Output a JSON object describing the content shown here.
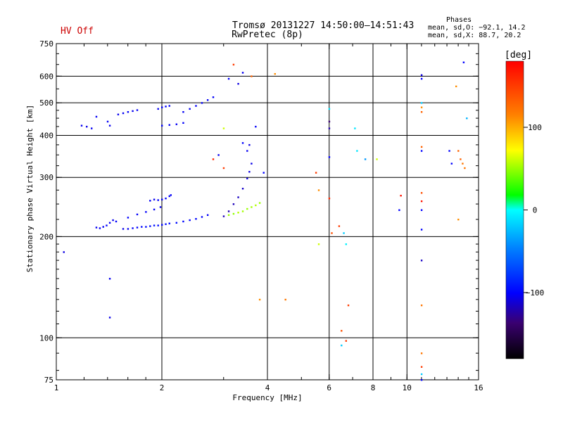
{
  "title_line1": "Tromsø 20131227 14:50:00–14:51:43",
  "title_line2": "RwPretec (8p)",
  "status_label": "HV Off",
  "phases": {
    "title": "Phases",
    "o_line": "mean, sd,O: −92.1, 14.2",
    "x_line": "mean, sd,X:  88.7, 20.2"
  },
  "colorbar": {
    "unit_label": "[deg]",
    "ticks": [
      "100",
      "0",
      "−100"
    ],
    "tick_values": [
      100,
      0,
      -100
    ],
    "range": [
      -180,
      180
    ]
  },
  "chart_data": {
    "type": "scatter",
    "title": "Tromsø 20131227 14:50:00–14:51:43",
    "subtitle": "RwPretec (8p)",
    "xlabel": "Frequency [MHz]",
    "ylabel": "Stationary phase Virtual Height [km]",
    "x_scale": "log",
    "y_scale": "log",
    "xlim": [
      1,
      16
    ],
    "ylim": [
      75,
      750
    ],
    "x_ticks": [
      "1",
      "2",
      "4",
      "6",
      "8",
      "10",
      "16"
    ],
    "x_tick_values": [
      1,
      2,
      4,
      6,
      8,
      10,
      16
    ],
    "x_grid_values": [
      2,
      4,
      6,
      8,
      10
    ],
    "y_ticks": [
      "75",
      "100",
      "200",
      "300",
      "400",
      "500",
      "600",
      "750"
    ],
    "y_tick_values": [
      75,
      100,
      200,
      300,
      400,
      500,
      600,
      750
    ],
    "y_grid_values": [
      100,
      200,
      300,
      400,
      500,
      600
    ],
    "color_by": "phase_deg",
    "series": [
      {
        "points": [
          [
            1.3,
            213,
            -105
          ],
          [
            1.33,
            212,
            -102
          ],
          [
            1.36,
            214,
            -104
          ],
          [
            1.39,
            216,
            -100
          ],
          [
            1.42,
            220,
            -103
          ],
          [
            1.45,
            224,
            -106
          ],
          [
            1.48,
            222,
            -101
          ],
          [
            1.55,
            211,
            -108
          ],
          [
            1.6,
            211,
            -104
          ],
          [
            1.65,
            212,
            -102
          ],
          [
            1.7,
            213,
            -100
          ],
          [
            1.75,
            214,
            -98
          ],
          [
            1.8,
            214,
            -96
          ],
          [
            1.85,
            215,
            -95
          ],
          [
            1.9,
            216,
            -94
          ],
          [
            1.95,
            216,
            -96
          ],
          [
            2.0,
            217,
            -98
          ],
          [
            2.05,
            218,
            -97
          ],
          [
            2.1,
            219,
            -95
          ],
          [
            2.2,
            220,
            -96
          ],
          [
            2.3,
            222,
            -98
          ],
          [
            2.4,
            224,
            -100
          ],
          [
            2.5,
            226,
            -99
          ],
          [
            2.6,
            229,
            -101
          ],
          [
            2.7,
            232,
            -103
          ],
          [
            1.6,
            228,
            -100
          ],
          [
            1.7,
            233,
            -102
          ],
          [
            1.8,
            237,
            -101
          ],
          [
            1.9,
            241,
            -103
          ],
          [
            1.98,
            245,
            -104
          ],
          [
            1.85,
            256,
            -103
          ],
          [
            1.9,
            258,
            -105
          ],
          [
            1.95,
            257,
            -102
          ],
          [
            2.0,
            258,
            -104
          ],
          [
            2.05,
            260,
            -101
          ],
          [
            2.1,
            264,
            -100
          ],
          [
            2.12,
            266,
            -103
          ],
          [
            1.5,
            462,
            -106
          ],
          [
            1.55,
            466,
            -104
          ],
          [
            1.6,
            470,
            -102
          ],
          [
            1.65,
            473,
            -105
          ],
          [
            1.7,
            476,
            -103
          ],
          [
            1.95,
            480,
            -104
          ],
          [
            2.0,
            485,
            -102
          ],
          [
            2.05,
            488,
            -101
          ],
          [
            2.1,
            490,
            -103
          ],
          [
            2.0,
            428,
            -100
          ],
          [
            2.1,
            430,
            -102
          ],
          [
            2.2,
            432,
            -104
          ],
          [
            2.3,
            436,
            -101
          ],
          [
            2.3,
            470,
            -103
          ],
          [
            2.4,
            480,
            -104
          ],
          [
            2.5,
            490,
            -102
          ],
          [
            2.6,
            500,
            -101
          ],
          [
            2.7,
            510,
            -103
          ],
          [
            2.8,
            520,
            -102
          ],
          [
            1.18,
            428,
            -105
          ],
          [
            1.22,
            425,
            -108
          ],
          [
            1.26,
            420,
            -104
          ],
          [
            1.3,
            455,
            -103
          ],
          [
            1.4,
            440,
            -102
          ],
          [
            1.42,
            428,
            -106
          ],
          [
            3.0,
            230,
            -125
          ],
          [
            3.1,
            238,
            -128
          ],
          [
            3.2,
            250,
            -124
          ],
          [
            3.3,
            262,
            -121
          ],
          [
            3.4,
            278,
            -118
          ],
          [
            3.5,
            298,
            -112
          ],
          [
            3.55,
            312,
            -110
          ],
          [
            3.6,
            330,
            -108
          ],
          [
            3.1,
            232,
            50
          ],
          [
            3.2,
            234,
            48
          ],
          [
            3.3,
            236,
            55
          ],
          [
            3.4,
            238,
            52
          ],
          [
            3.5,
            242,
            50
          ],
          [
            3.6,
            245,
            52
          ],
          [
            3.7,
            248,
            55
          ],
          [
            3.8,
            252,
            50
          ],
          [
            1.05,
            180,
            -110
          ],
          [
            1.42,
            150,
            -105
          ],
          [
            1.42,
            115,
            -108
          ],
          [
            3.1,
            590,
            -102
          ],
          [
            3.3,
            570,
            -110
          ],
          [
            3.4,
            615,
            -105
          ],
          [
            3.2,
            650,
            150
          ],
          [
            3.6,
            600,
            130
          ],
          [
            4.2,
            610,
            110
          ],
          [
            3.4,
            380,
            -100
          ],
          [
            3.5,
            360,
            -105
          ],
          [
            3.55,
            375,
            -110
          ],
          [
            3.7,
            425,
            -102
          ],
          [
            3.9,
            310,
            -100
          ],
          [
            3.0,
            420,
            60
          ],
          [
            2.8,
            340,
            160
          ],
          [
            2.9,
            350,
            -105
          ],
          [
            3.0,
            320,
            150
          ],
          [
            3.8,
            130,
            110
          ],
          [
            4.5,
            130,
            120
          ],
          [
            5.5,
            310,
            150
          ],
          [
            5.6,
            275,
            110
          ],
          [
            5.6,
            190,
            60
          ],
          [
            6.0,
            480,
            -10
          ],
          [
            6.0,
            440,
            -150
          ],
          [
            6.0,
            420,
            -130
          ],
          [
            6.0,
            345,
            -100
          ],
          [
            6.0,
            260,
            160
          ],
          [
            6.1,
            205,
            140
          ],
          [
            6.4,
            215,
            150
          ],
          [
            6.5,
            105,
            140
          ],
          [
            6.6,
            205,
            -20
          ],
          [
            6.7,
            190,
            -5
          ],
          [
            6.7,
            98,
            150
          ],
          [
            6.5,
            95,
            -20
          ],
          [
            6.8,
            125,
            150
          ],
          [
            7.1,
            420,
            -10
          ],
          [
            7.2,
            360,
            -10
          ],
          [
            7.6,
            340,
            -40
          ],
          [
            8.2,
            340,
            60
          ],
          [
            9.5,
            240,
            -100
          ],
          [
            9.6,
            265,
            170
          ],
          [
            11.0,
            590,
            -100
          ],
          [
            11.0,
            605,
            -110
          ],
          [
            11.0,
            500,
            -20
          ],
          [
            11.0,
            485,
            110
          ],
          [
            11.0,
            470,
            130
          ],
          [
            11.0,
            370,
            130
          ],
          [
            11.0,
            360,
            -100
          ],
          [
            11.0,
            270,
            140
          ],
          [
            11.0,
            255,
            170
          ],
          [
            11.0,
            240,
            -100
          ],
          [
            11.0,
            210,
            -100
          ],
          [
            11.0,
            170,
            -120
          ],
          [
            11.0,
            125,
            120
          ],
          [
            11.0,
            82,
            150
          ],
          [
            11.0,
            78,
            -20
          ],
          [
            11.0,
            90,
            120
          ],
          [
            11.0,
            75,
            -100
          ],
          [
            13.8,
            560,
            110
          ],
          [
            14.0,
            360,
            130
          ],
          [
            14.2,
            340,
            130
          ],
          [
            14.4,
            330,
            120
          ],
          [
            14.6,
            320,
            120
          ],
          [
            13.2,
            360,
            -100
          ],
          [
            13.4,
            330,
            -100
          ],
          [
            14.8,
            450,
            -30
          ],
          [
            14.0,
            225,
            110
          ],
          [
            14.5,
            660,
            -100
          ]
        ]
      }
    ]
  }
}
